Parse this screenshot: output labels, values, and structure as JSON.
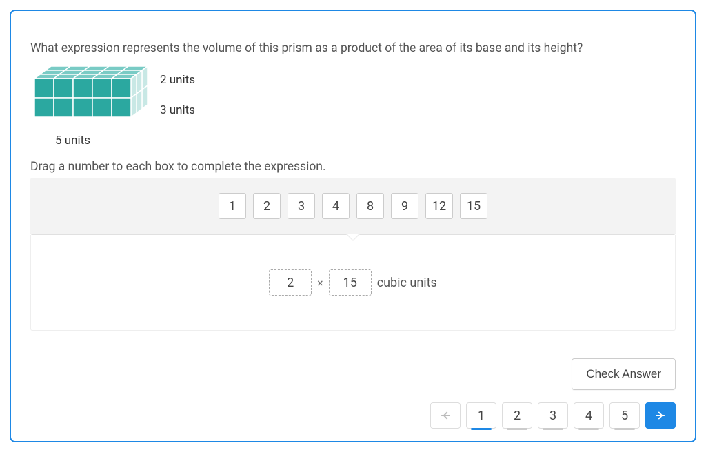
{
  "question": "What expression represents the volume of this prism as a product of the area of its base and its height?",
  "prism": {
    "width_units": 5,
    "depth_units": 3,
    "height_units": 2,
    "label_width": "5 units",
    "label_depth": "3 units",
    "label_height": "2 units",
    "colors": {
      "cube_fill": "#2ba8a0",
      "cube_stroke": "#ffffff",
      "top_fill": "#79cbc5",
      "side_fill": "#c8e8e5"
    }
  },
  "instruction": "Drag a number to each box to complete the expression.",
  "bank_tiles": [
    "1",
    "2",
    "3",
    "4",
    "8",
    "9",
    "12",
    "15"
  ],
  "expression": {
    "slot_a": "2",
    "operator": "×",
    "slot_b": "15",
    "unit_label": "cubic units"
  },
  "buttons": {
    "check": "Check Answer"
  },
  "pager": {
    "pages": [
      "1",
      "2",
      "3",
      "4",
      "5"
    ],
    "active": "1"
  },
  "styling": {
    "card_border": "#1e88e5",
    "bank_bg": "#f3f3f3",
    "tile_border": "#cccccc",
    "drop_border": "#aaaaaa",
    "text_color": "#555555",
    "next_btn_bg": "#1e88e5"
  }
}
